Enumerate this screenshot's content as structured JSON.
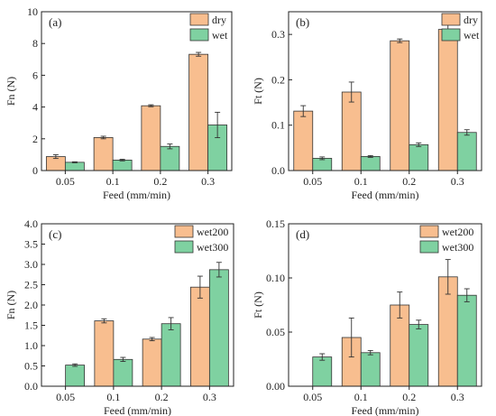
{
  "colors": {
    "dry": "#F8BE8F",
    "wet": "#7FD1A1",
    "wet200": "#F8BE8F",
    "wet300": "#7FD1A1",
    "edge": "#333333"
  },
  "chart_data": [
    {
      "panel_label": "(a)",
      "type": "bar",
      "xlabel": "Feed (mm/min)",
      "ylabel": "Fn (N)",
      "categories": [
        "0.05",
        "0.1",
        "0.2",
        "0.3"
      ],
      "ylim": [
        0,
        10
      ],
      "yticks": [
        0,
        2,
        4,
        6,
        8,
        10
      ],
      "ytick_labels": [
        "0",
        "2",
        "4",
        "6",
        "8",
        "10"
      ],
      "legend_position": "top-right",
      "series": [
        {
          "name": "dry",
          "color_key": "dry",
          "values": [
            0.88,
            2.08,
            4.08,
            7.32
          ],
          "errors": [
            0.12,
            0.08,
            0.06,
            0.12
          ]
        },
        {
          "name": "wet",
          "color_key": "wet",
          "values": [
            0.52,
            0.66,
            1.52,
            2.87
          ],
          "errors": [
            0.03,
            0.05,
            0.15,
            0.8
          ]
        }
      ]
    },
    {
      "panel_label": "(b)",
      "type": "bar",
      "xlabel": "Feed (mm/min)",
      "ylabel": "Ft (N)",
      "categories": [
        "0.05",
        "0.1",
        "0.2",
        "0.3"
      ],
      "ylim": [
        0,
        0.35
      ],
      "yticks": [
        0,
        0.1,
        0.2,
        0.3
      ],
      "ytick_labels": [
        "0.0",
        "0.1",
        "0.2",
        "0.3"
      ],
      "legend_position": "top-right",
      "series": [
        {
          "name": "dry",
          "color_key": "dry",
          "values": [
            0.131,
            0.173,
            0.286,
            0.311
          ],
          "errors": [
            0.012,
            0.022,
            0.004,
            0.014
          ]
        },
        {
          "name": "wet",
          "color_key": "wet",
          "values": [
            0.027,
            0.031,
            0.057,
            0.084
          ],
          "errors": [
            0.003,
            0.002,
            0.004,
            0.006
          ]
        }
      ]
    },
    {
      "panel_label": "(c)",
      "type": "bar",
      "xlabel": "Feed (mm/min)",
      "ylabel": "Fn (N)",
      "categories": [
        "0.05",
        "0.1",
        "0.2",
        "0.3"
      ],
      "ylim": [
        0,
        4
      ],
      "yticks": [
        0,
        0.5,
        1,
        1.5,
        2,
        2.5,
        3,
        3.5,
        4
      ],
      "ytick_labels": [
        "0.0",
        "0.5",
        "1.0",
        "1.5",
        "2.0",
        "2.5",
        "3.0",
        "3.5",
        "4.0"
      ],
      "legend_position": "top-right",
      "series": [
        {
          "name": "wet200",
          "color_key": "wet200",
          "values": [
            null,
            1.61,
            1.16,
            2.44
          ],
          "errors": [
            null,
            0.05,
            0.04,
            0.27
          ]
        },
        {
          "name": "wet300",
          "color_key": "wet300",
          "values": [
            0.52,
            0.66,
            1.54,
            2.87
          ],
          "errors": [
            0.03,
            0.05,
            0.15,
            0.18
          ]
        }
      ]
    },
    {
      "panel_label": "(d)",
      "type": "bar",
      "xlabel": "Feed (mm/min)",
      "ylabel": "Ft (N)",
      "categories": [
        "0.05",
        "0.1",
        "0.2",
        "0.3"
      ],
      "ylim": [
        0,
        0.15
      ],
      "yticks": [
        0,
        0.05,
        0.1,
        0.15
      ],
      "ytick_labels": [
        "0.00",
        "0.05",
        "0.10",
        "0.15"
      ],
      "legend_position": "top-right",
      "series": [
        {
          "name": "wet200",
          "color_key": "wet200",
          "values": [
            null,
            0.045,
            0.075,
            0.101
          ],
          "errors": [
            null,
            0.018,
            0.012,
            0.016
          ]
        },
        {
          "name": "wet300",
          "color_key": "wet300",
          "values": [
            0.027,
            0.031,
            0.057,
            0.084
          ],
          "errors": [
            0.003,
            0.002,
            0.004,
            0.006
          ]
        }
      ]
    }
  ]
}
